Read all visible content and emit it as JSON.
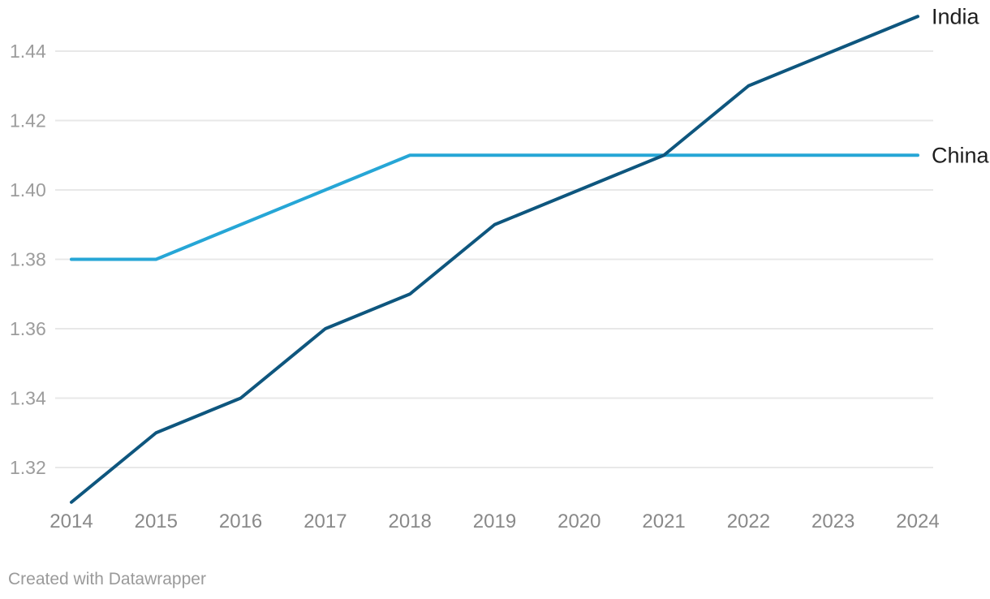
{
  "chart_data": {
    "type": "line",
    "title": "",
    "xlabel": "",
    "ylabel": "",
    "grid": true,
    "legend_position": "direct-labels-right",
    "x": [
      2014,
      2015,
      2016,
      2017,
      2018,
      2019,
      2020,
      2021,
      2022,
      2023,
      2024
    ],
    "series": [
      {
        "name": "India",
        "color": "#0e567e",
        "values": [
          1.31,
          1.33,
          1.34,
          1.36,
          1.37,
          1.39,
          1.4,
          1.41,
          1.43,
          1.44,
          1.45
        ]
      },
      {
        "name": "China",
        "color": "#26a6d6",
        "values": [
          1.38,
          1.38,
          1.39,
          1.4,
          1.41,
          1.41,
          1.41,
          1.41,
          1.41,
          1.41,
          1.41
        ]
      }
    ],
    "yticks": [
      1.32,
      1.34,
      1.36,
      1.38,
      1.4,
      1.42,
      1.44
    ],
    "ylim": [
      1.308,
      1.453
    ],
    "xlim": [
      2014,
      2024
    ]
  },
  "colors": {
    "grid": "#e8e8e8",
    "y_axis_text": "#9c9c9c",
    "x_axis_text": "#898989",
    "series_label_text": "#1e1e1e",
    "background": "#ffffff"
  },
  "footer": {
    "credit": "Created with Datawrapper"
  }
}
